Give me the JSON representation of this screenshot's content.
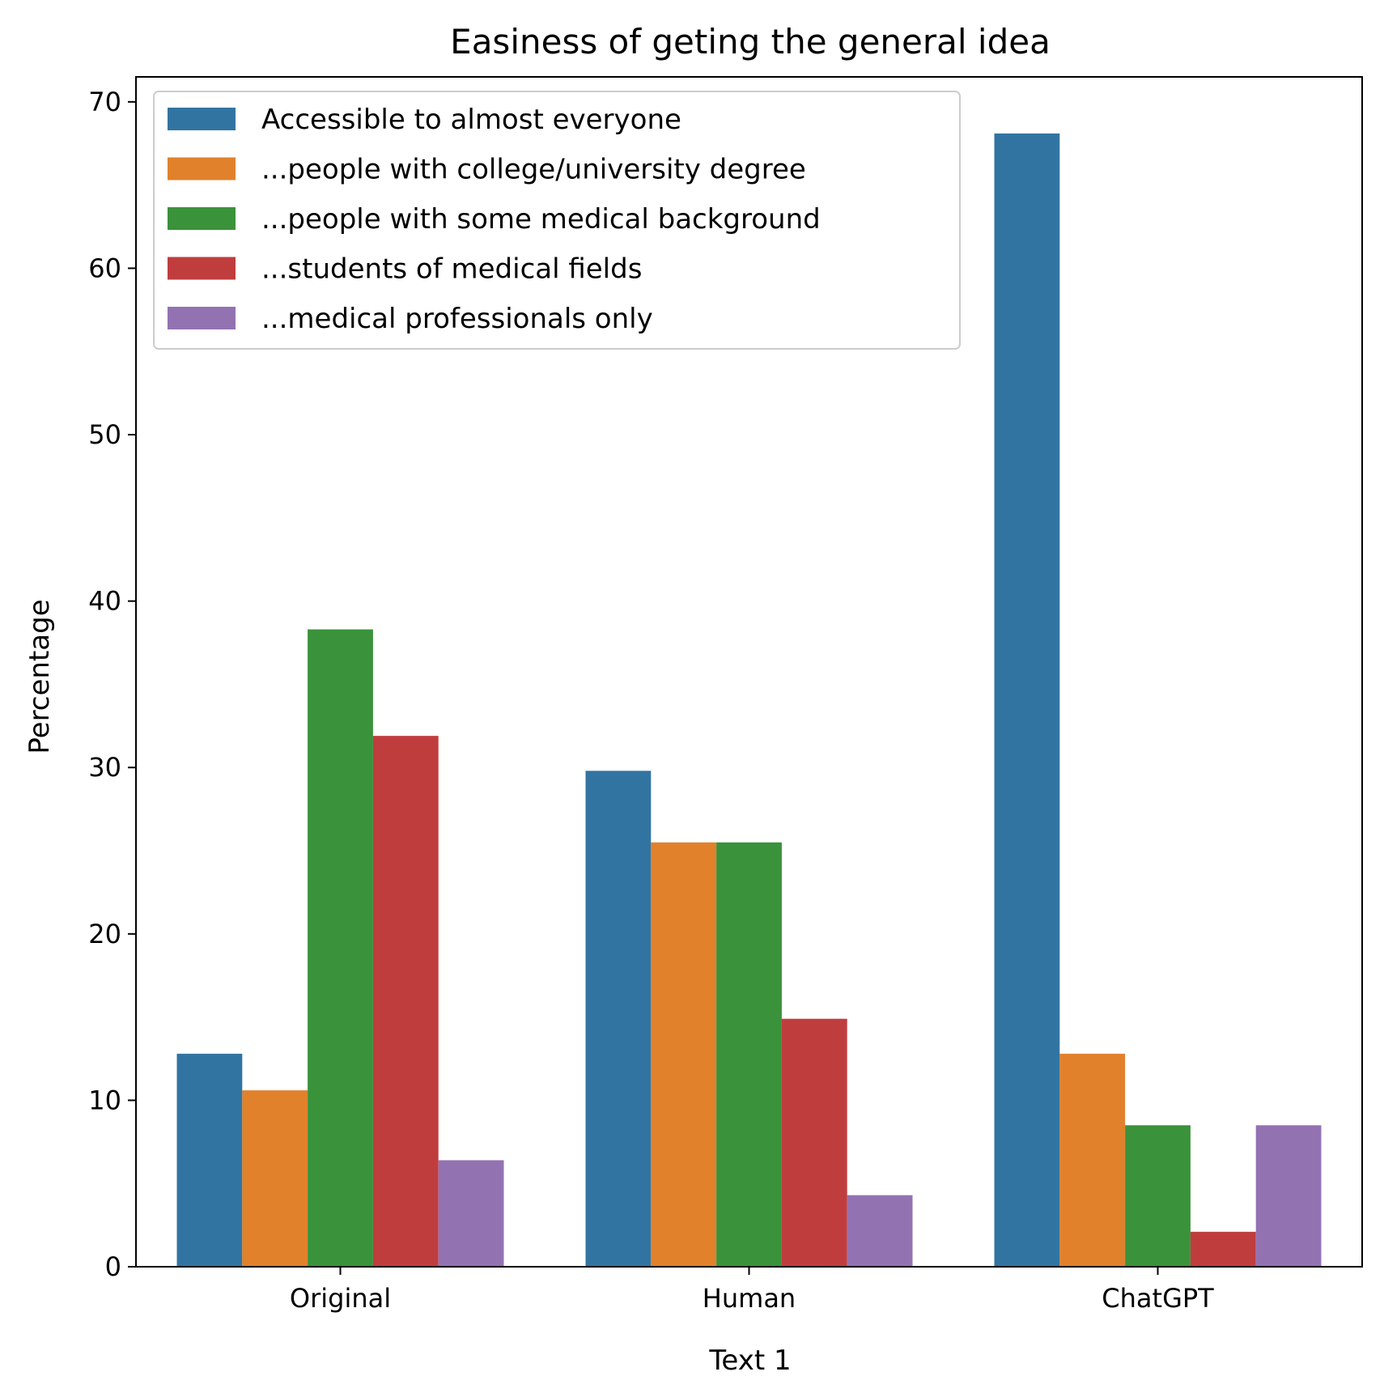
{
  "chart_data": {
    "type": "bar",
    "title": "Easiness of geting the general idea",
    "xlabel": "Text 1",
    "ylabel": "Percentage",
    "categories": [
      "Original",
      "Human",
      "ChatGPT"
    ],
    "ylim": [
      0,
      71.5
    ],
    "yticks": [
      0,
      10,
      20,
      30,
      40,
      50,
      60,
      70
    ],
    "grid": false,
    "legend_position": "top-left",
    "series": [
      {
        "name": "Accessible to almost everyone",
        "color": "#3274a1",
        "values": [
          12.8,
          29.8,
          68.1
        ]
      },
      {
        "name": "...people with college/university degree",
        "color": "#e1812c",
        "values": [
          10.6,
          25.5,
          12.8
        ]
      },
      {
        "name": "...people with some medical background",
        "color": "#3a923a",
        "values": [
          38.3,
          25.5,
          8.5
        ]
      },
      {
        "name": "...students of medical fields",
        "color": "#c03d3e",
        "values": [
          31.9,
          14.9,
          2.1
        ]
      },
      {
        "name": "...medical professionals only",
        "color": "#9372b2",
        "values": [
          6.4,
          4.3,
          8.5
        ]
      }
    ]
  }
}
